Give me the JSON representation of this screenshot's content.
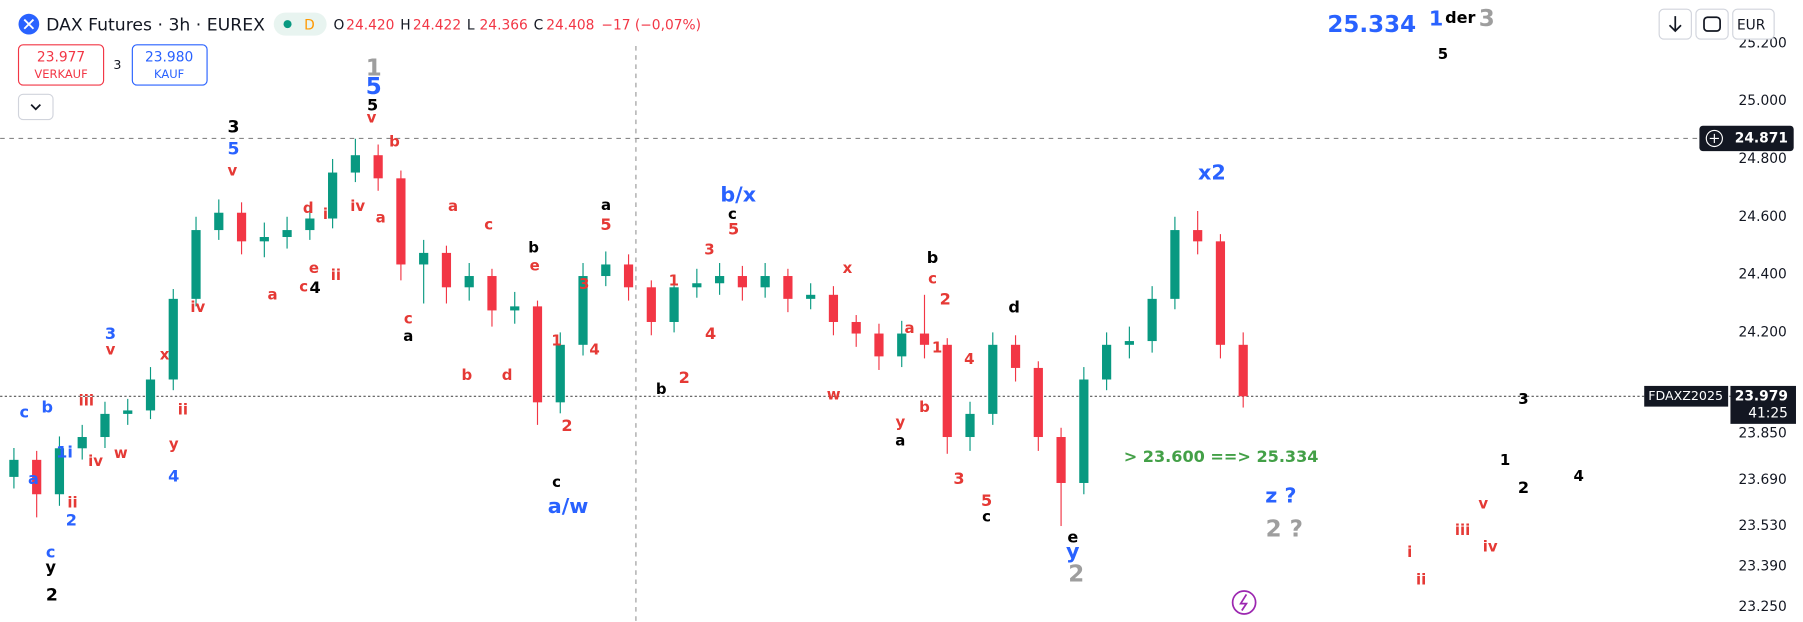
{
  "header": {
    "symbol": "DAX Futures · 3h · EUREX",
    "badge": "D",
    "ohlc": [
      {
        "key": "O",
        "value": "24.420"
      },
      {
        "key": "H",
        "value": "24.422"
      },
      {
        "key": "L",
        "value": "24.366"
      },
      {
        "key": "C",
        "value": "24.408"
      }
    ],
    "change": "−17 (−0,07%)",
    "sell": {
      "price": "23.977",
      "label": "VERKAUF"
    },
    "spread": "3",
    "buy": {
      "price": "23.980",
      "label": "KAUF"
    },
    "currency": "EUR"
  },
  "chart_data": {
    "type": "candlestick",
    "open": [
      23700,
      23759,
      23640,
      23799,
      23838,
      23918,
      23930,
      24037,
      24316,
      24554,
      24614,
      24515,
      24530,
      24554,
      24594,
      24753,
      24813,
      24733,
      24435,
      24475,
      24356,
      24395,
      24276,
      24290,
      23958,
      24157,
      24395,
      24435,
      24356,
      24236,
      24356,
      24370,
      24395,
      24356,
      24395,
      24316,
      24330,
      24236,
      24196,
      24117,
      24196,
      24157,
      23838,
      23918,
      24157,
      24077,
      23838,
      23679,
      24037,
      24157,
      24170,
      24316,
      24554,
      24515,
      24157
    ],
    "high": [
      23800,
      23790,
      23840,
      23880,
      23960,
      23970,
      24080,
      24350,
      24600,
      24660,
      24650,
      24580,
      24600,
      24640,
      24800,
      24870,
      24850,
      24760,
      24520,
      24500,
      24440,
      24420,
      24340,
      24310,
      24200,
      24440,
      24480,
      24470,
      24380,
      24400,
      24420,
      24440,
      24430,
      24440,
      24420,
      24370,
      24360,
      24260,
      24230,
      24240,
      24330,
      24180,
      23960,
      24200,
      24190,
      24100,
      23870,
      24080,
      24200,
      24220,
      24360,
      24600,
      24620,
      24540,
      24200
    ],
    "low": [
      23660,
      23560,
      23600,
      23760,
      23800,
      23880,
      23900,
      24000,
      24290,
      24520,
      24470,
      24460,
      24490,
      24520,
      24560,
      24720,
      24690,
      24380,
      24300,
      24300,
      24310,
      24220,
      24230,
      23880,
      23920,
      24120,
      24360,
      24310,
      24190,
      24200,
      24320,
      24330,
      24310,
      24320,
      24270,
      24280,
      24190,
      24150,
      24070,
      24080,
      24110,
      23780,
      23790,
      23880,
      24030,
      23790,
      23530,
      23640,
      24000,
      24110,
      24130,
      24280,
      24470,
      24110,
      23940
    ],
    "close": [
      23759,
      23640,
      23799,
      23838,
      23918,
      23930,
      24037,
      24316,
      24554,
      24614,
      24515,
      24530,
      24554,
      24594,
      24753,
      24813,
      24733,
      24435,
      24475,
      24356,
      24395,
      24276,
      24290,
      23958,
      24157,
      24395,
      24435,
      24356,
      24236,
      24356,
      24370,
      24395,
      24356,
      24395,
      24316,
      24330,
      24236,
      24196,
      24117,
      24196,
      24157,
      23838,
      23918,
      24157,
      24077,
      23838,
      23679,
      24037,
      24157,
      24170,
      24316,
      24554,
      24515,
      24157,
      23979
    ],
    "up_color": "#089981",
    "down_color": "#f23645",
    "ylim": [
      23198,
      25350
    ],
    "yticks": [
      {
        "value": 25200,
        "label": "25.200"
      },
      {
        "value": 25000,
        "label": "25.000"
      },
      {
        "value": 24800,
        "label": "24.800"
      },
      {
        "value": 24600,
        "label": "24.600"
      },
      {
        "value": 24400,
        "label": "24.400"
      },
      {
        "value": 24200,
        "label": "24.200"
      },
      {
        "value": 23850,
        "label": "23.850"
      },
      {
        "value": 23690,
        "label": "23.690"
      },
      {
        "value": 23530,
        "label": "23.530"
      },
      {
        "value": 23390,
        "label": "23.390"
      },
      {
        "value": 23250,
        "label": "23.250"
      }
    ],
    "grid": false,
    "crosshair_price": {
      "value": 24871,
      "label": "24.871"
    },
    "last_price": {
      "value": 23979,
      "label": "23.979"
    },
    "symbol_tag": "FDAXZ2025",
    "countdown": "41:25",
    "annotations": [
      {
        "text": "1",
        "color": "#9e9e9e"
      },
      {
        "text": "5",
        "color": "#2962ff"
      },
      {
        "text": "5",
        "color": "#000000"
      },
      {
        "text": "v",
        "color": "#e53935"
      },
      {
        "text": "3",
        "color": "#000000"
      },
      {
        "text": "5",
        "color": "#2962ff"
      },
      {
        "text": "v",
        "color": "#e53935"
      },
      {
        "text": "3",
        "color": "#2962ff"
      },
      {
        "text": "v",
        "color": "#e53935"
      },
      {
        "text": "x",
        "color": "#e53935"
      },
      {
        "text": "4",
        "color": "#2962ff"
      },
      {
        "text": "c",
        "color": "#2962ff"
      },
      {
        "text": "b",
        "color": "#2962ff"
      },
      {
        "text": "iii",
        "color": "#e53935"
      },
      {
        "text": "1i",
        "color": "#2962ff"
      },
      {
        "text": "a",
        "color": "#2962ff"
      },
      {
        "text": "iv",
        "color": "#e53935"
      },
      {
        "text": "w",
        "color": "#e53935"
      },
      {
        "text": "y",
        "color": "#e53935"
      },
      {
        "text": "ii",
        "color": "#e53935"
      },
      {
        "text": "iv",
        "color": "#e53935"
      },
      {
        "text": "ii",
        "color": "#e53935"
      },
      {
        "text": "2",
        "color": "#2962ff"
      },
      {
        "text": "c",
        "color": "#2962ff"
      },
      {
        "text": "y",
        "color": "#000000"
      },
      {
        "text": "2",
        "color": "#000000"
      },
      {
        "text": "b",
        "color": "#e53935"
      },
      {
        "text": "iv",
        "color": "#e53935"
      },
      {
        "text": "a",
        "color": "#e53935"
      },
      {
        "text": "i",
        "color": "#e53935"
      },
      {
        "text": "d",
        "color": "#e53935"
      },
      {
        "text": "e",
        "color": "#e53935"
      },
      {
        "text": "ii",
        "color": "#e53935"
      },
      {
        "text": "c",
        "color": "#e53935"
      },
      {
        "text": "4",
        "color": "#000000"
      },
      {
        "text": "a",
        "color": "#e53935"
      },
      {
        "text": "a",
        "color": "#e53935"
      },
      {
        "text": "c",
        "color": "#e53935"
      },
      {
        "text": "c",
        "color": "#e53935"
      },
      {
        "text": "a",
        "color": "#000000"
      },
      {
        "text": "b",
        "color": "#e53935"
      },
      {
        "text": "d",
        "color": "#e53935"
      },
      {
        "text": "b",
        "color": "#000000"
      },
      {
        "text": "e",
        "color": "#e53935"
      },
      {
        "text": "3",
        "color": "#e53935"
      },
      {
        "text": "1",
        "color": "#e53935"
      },
      {
        "text": "4",
        "color": "#e53935"
      },
      {
        "text": "2",
        "color": "#e53935"
      },
      {
        "text": "c",
        "color": "#000000"
      },
      {
        "text": "a/w",
        "color": "#2962ff"
      },
      {
        "text": "a",
        "color": "#000000"
      },
      {
        "text": "5",
        "color": "#e53935"
      },
      {
        "text": "b/x",
        "color": "#2962ff"
      },
      {
        "text": "c",
        "color": "#000000"
      },
      {
        "text": "5",
        "color": "#e53935"
      },
      {
        "text": "3",
        "color": "#e53935"
      },
      {
        "text": "1",
        "color": "#e53935"
      },
      {
        "text": "4",
        "color": "#e53935"
      },
      {
        "text": "2",
        "color": "#e53935"
      },
      {
        "text": "b",
        "color": "#000000"
      },
      {
        "text": "x",
        "color": "#e53935"
      },
      {
        "text": "w",
        "color": "#e53935"
      },
      {
        "text": "y",
        "color": "#e53935"
      },
      {
        "text": "a",
        "color": "#000000"
      },
      {
        "text": "b",
        "color": "#000000"
      },
      {
        "text": "c",
        "color": "#e53935"
      },
      {
        "text": "2",
        "color": "#e53935"
      },
      {
        "text": "a",
        "color": "#e53935"
      },
      {
        "text": "1",
        "color": "#e53935"
      },
      {
        "text": "4",
        "color": "#e53935"
      },
      {
        "text": "b",
        "color": "#e53935"
      },
      {
        "text": "d",
        "color": "#000000"
      },
      {
        "text": "3",
        "color": "#e53935"
      },
      {
        "text": "5",
        "color": "#e53935"
      },
      {
        "text": "c",
        "color": "#000000"
      },
      {
        "text": "e",
        "color": "#000000"
      },
      {
        "text": "y",
        "color": "#2962ff"
      },
      {
        "text": "2",
        "color": "#9e9e9e"
      },
      {
        "text": "x2",
        "color": "#2962ff"
      },
      {
        "text": "> 23.600 ==> 25.334",
        "color": "#43a047"
      },
      {
        "text": "z ?",
        "color": "#2962ff"
      },
      {
        "text": "2 ?",
        "color": "#9e9e9e"
      },
      {
        "text": "3",
        "color": "#000000"
      },
      {
        "text": "1",
        "color": "#000000"
      },
      {
        "text": "2",
        "color": "#000000"
      },
      {
        "text": "4",
        "color": "#000000"
      },
      {
        "text": "v",
        "color": "#e53935"
      },
      {
        "text": "iii",
        "color": "#e53935"
      },
      {
        "text": "iv",
        "color": "#e53935"
      },
      {
        "text": "i",
        "color": "#e53935"
      },
      {
        "text": "ii",
        "color": "#e53935"
      },
      {
        "text": "25.334",
        "color": "#2962ff"
      },
      {
        "text": "1",
        "color": "#2962ff"
      },
      {
        "text": "der",
        "color": "#000000"
      },
      {
        "text": "3",
        "color": "#9e9e9e"
      },
      {
        "text": "5",
        "color": "#000000"
      }
    ]
  }
}
